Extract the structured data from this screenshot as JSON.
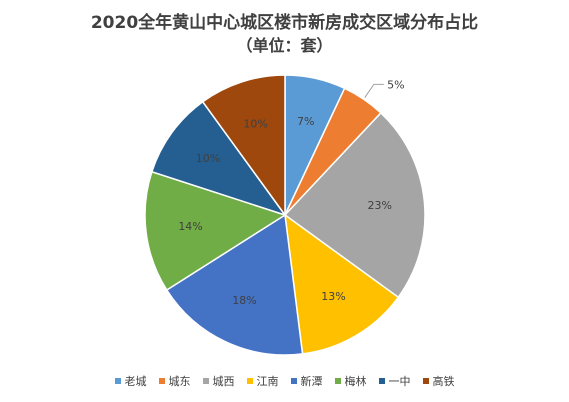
{
  "chart_data": {
    "type": "pie",
    "title": "2020全年黄山中心城区楼市新房成交区域分布占比",
    "subtitle": "（单位：套）",
    "categories": [
      "老城",
      "城东",
      "城西",
      "江南",
      "新潭",
      "梅林",
      "一中",
      "高铁"
    ],
    "values": [
      7,
      5,
      23,
      13,
      18,
      14,
      10,
      10
    ],
    "data_labels": [
      "7%",
      "5%",
      "23%",
      "13%",
      "18%",
      "14%",
      "10%",
      "10%"
    ],
    "colors": [
      "#5B9BD5",
      "#ED7D31",
      "#A5A5A5",
      "#FFC000",
      "#4472C4",
      "#70AD47",
      "#255E91",
      "#9E480E"
    ],
    "legend_position": "bottom"
  }
}
